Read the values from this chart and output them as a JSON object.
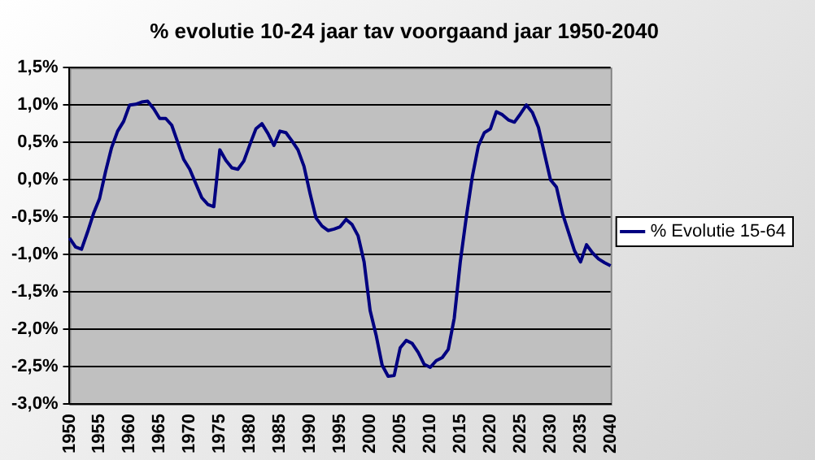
{
  "chart_data": {
    "type": "line",
    "title": "% evolutie 10-24 jaar tav voorgaand jaar 1950-2040",
    "categories": [
      "1950",
      null,
      null,
      null,
      null,
      "1955",
      null,
      null,
      null,
      null,
      "1960",
      null,
      null,
      null,
      null,
      "1965",
      null,
      null,
      null,
      null,
      "1970",
      null,
      null,
      null,
      null,
      "1975",
      null,
      null,
      null,
      null,
      "1980",
      null,
      null,
      null,
      null,
      "1985",
      null,
      null,
      null,
      null,
      "1990",
      null,
      null,
      null,
      null,
      "1995",
      null,
      null,
      null,
      null,
      "2000",
      null,
      null,
      null,
      null,
      "2005",
      null,
      null,
      null,
      null,
      "2010",
      null,
      null,
      null,
      null,
      "2015",
      null,
      null,
      null,
      null,
      "2020",
      null,
      null,
      null,
      null,
      "2025",
      null,
      null,
      null,
      null,
      "2030",
      null,
      null,
      null,
      null,
      "2035",
      null,
      null,
      null,
      null,
      "2040"
    ],
    "series": [
      {
        "name": "% Evolutie 15-64",
        "color": "#000080",
        "values": [
          -0.78,
          -0.9,
          -0.93,
          -0.7,
          -0.45,
          -0.25,
          0.11,
          0.43,
          0.65,
          0.78,
          1.0,
          1.01,
          1.04,
          1.05,
          0.95,
          0.82,
          0.82,
          0.73,
          0.5,
          0.27,
          0.14,
          -0.05,
          -0.24,
          -0.33,
          -0.36,
          0.4,
          0.26,
          0.16,
          0.14,
          0.25,
          0.47,
          0.68,
          0.75,
          0.62,
          0.46,
          0.65,
          0.63,
          0.52,
          0.4,
          0.18,
          -0.18,
          -0.51,
          -0.62,
          -0.68,
          -0.66,
          -0.63,
          -0.53,
          -0.6,
          -0.75,
          -1.1,
          -1.75,
          -2.08,
          -2.48,
          -2.63,
          -2.62,
          -2.25,
          -2.15,
          -2.19,
          -2.31,
          -2.47,
          -2.51,
          -2.42,
          -2.38,
          -2.27,
          -1.85,
          -1.1,
          -0.5,
          0.04,
          0.45,
          0.63,
          0.68,
          0.91,
          0.87,
          0.8,
          0.77,
          0.88,
          1.0,
          0.9,
          0.7,
          0.35,
          0.0,
          -0.1,
          -0.45,
          -0.7,
          -0.95,
          -1.1,
          -0.87,
          -0.98,
          -1.06,
          -1.11,
          -1.15
        ]
      }
    ],
    "ylim": [
      -3.0,
      1.5
    ],
    "yticks": [
      {
        "value": -3.0,
        "label": "-3,0%"
      },
      {
        "value": -2.5,
        "label": "-2,5%"
      },
      {
        "value": -2.0,
        "label": "-2,0%"
      },
      {
        "value": -1.5,
        "label": "-1,5%"
      },
      {
        "value": -1.0,
        "label": "-1,0%"
      },
      {
        "value": -0.5,
        "label": "-0,5%"
      },
      {
        "value": 0.0,
        "label": "0,0%"
      },
      {
        "value": 0.5,
        "label": "0,5%"
      },
      {
        "value": 1.0,
        "label": "1,0%"
      },
      {
        "value": 1.5,
        "label": "1,5%"
      }
    ],
    "grid": "y",
    "legend": "right",
    "marker": "none",
    "line_style": "solid"
  }
}
